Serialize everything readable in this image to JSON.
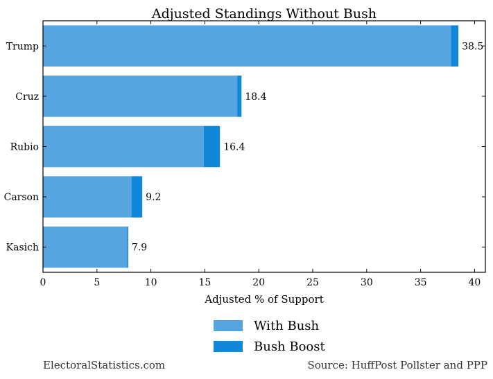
{
  "chart_data": {
    "type": "bar",
    "orientation": "horizontal",
    "stacked": true,
    "title": "Adjusted Standings Without Bush",
    "xlabel": "Adjusted % of Support",
    "ylabel": "",
    "xlim": [
      0,
      41
    ],
    "xticks": [
      "0",
      "5",
      "10",
      "15",
      "20",
      "25",
      "30",
      "35",
      "40"
    ],
    "categories": [
      "Trump",
      "Cruz",
      "Rubio",
      "Carson",
      "Kasich"
    ],
    "series": [
      {
        "name": "With Bush",
        "color": "#56a5e1",
        "values": [
          37.8,
          18.0,
          14.9,
          8.2,
          7.8
        ]
      },
      {
        "name": "Bush Boost",
        "color": "#1187d9",
        "values": [
          0.7,
          0.4,
          1.5,
          1.0,
          0.1
        ]
      }
    ],
    "totals": [
      "38.5",
      "18.4",
      "16.4",
      "9.2",
      "7.9"
    ],
    "legend_position": "bottom-center",
    "grid": false
  },
  "footer": {
    "left": "ElectoralStatistics.com",
    "right": "Source: HuffPost Pollster and PPP"
  }
}
